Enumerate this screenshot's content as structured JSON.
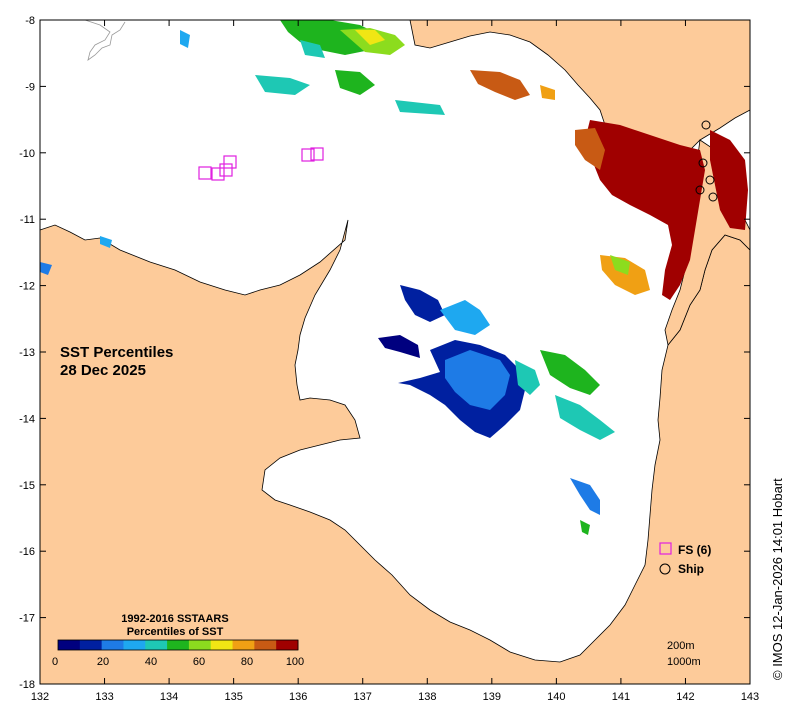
{
  "map": {
    "title_line1": "SST Percentiles",
    "title_line2": "28 Dec 2025",
    "credit": "© IMOS 12-Jan-2026 14:01 Hobart",
    "land_color": "#FDCB9A",
    "sea_color": "#FFFFFF",
    "x_ticks": [
      "132",
      "133",
      "134",
      "135",
      "136",
      "137",
      "138",
      "139",
      "140",
      "141",
      "142",
      "143"
    ],
    "y_ticks": [
      "-8",
      "-9",
      "-10",
      "-11",
      "-12",
      "-13",
      "-14",
      "-15",
      "-16",
      "-17",
      "-18"
    ]
  },
  "colorbar": {
    "title_line1": "1992-2016 SSTAARS",
    "title_line2": "Percentiles of SST",
    "labels": [
      "0",
      "20",
      "40",
      "60",
      "80",
      "100"
    ],
    "colors": [
      "#00007F",
      "#0020A0",
      "#1E7BE6",
      "#1EA8F0",
      "#1EC8B4",
      "#1EB41E",
      "#8CDC1E",
      "#F0E614",
      "#F0A014",
      "#C85A14",
      "#A00000"
    ]
  },
  "legend": {
    "fs_label": "FS (6)",
    "ship_label": "Ship",
    "fs_color": "#E020E0"
  },
  "depth_labels": {
    "d200": "200m",
    "d1000": "1000m"
  }
}
